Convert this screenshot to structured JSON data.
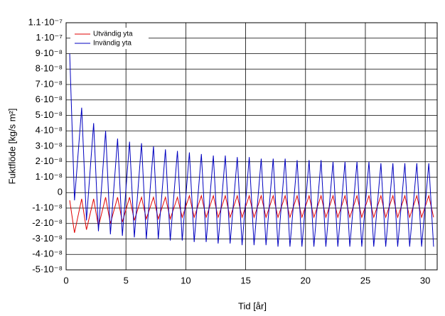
{
  "chart_data": {
    "type": "line",
    "xlabel": "Tid [år]",
    "ylabel": "Fuktflöde [kg/s m²]",
    "x": [
      0.3,
      0.7,
      1.3,
      1.7,
      2.3,
      2.7,
      3.3,
      3.7,
      4.3,
      4.7,
      5.3,
      5.7,
      6.3,
      6.7,
      7.3,
      7.7,
      8.3,
      8.7,
      9.3,
      9.7,
      10.3,
      10.7,
      11.3,
      11.7,
      12.3,
      12.7,
      13.3,
      13.7,
      14.3,
      14.7,
      15.3,
      15.7,
      16.3,
      16.7,
      17.3,
      17.7,
      18.3,
      18.7,
      19.3,
      19.7,
      20.3,
      20.7,
      21.3,
      21.7,
      22.3,
      22.7,
      23.3,
      23.7,
      24.3,
      24.7,
      25.3,
      25.7,
      26.3,
      26.7,
      27.3,
      27.7,
      28.3,
      28.7,
      29.3,
      29.7,
      30.3,
      30.7
    ],
    "series": [
      {
        "name": "Utvändig yta",
        "color": "#e00000",
        "values": [
          -5e-09,
          -2.6e-08,
          -4e-09,
          -2.4e-08,
          -4e-09,
          -2.2e-08,
          -3e-09,
          -2e-08,
          -3e-09,
          -1.9e-08,
          -3e-09,
          -1.8e-08,
          -3e-09,
          -1.7e-08,
          -3e-09,
          -1.7e-08,
          -3e-09,
          -1.7e-08,
          -3e-09,
          -1.6e-08,
          -2e-09,
          -1.6e-08,
          -2e-09,
          -1.6e-08,
          -2e-09,
          -1.6e-08,
          -2e-09,
          -1.6e-08,
          -2e-09,
          -1.6e-08,
          -2e-09,
          -1.6e-08,
          -2e-09,
          -1.6e-08,
          -2e-09,
          -1.6e-08,
          -2e-09,
          -1.6e-08,
          -2e-09,
          -1.6e-08,
          -2e-09,
          -1.6e-08,
          -2e-09,
          -1.6e-08,
          -2e-09,
          -1.6e-08,
          -2e-09,
          -1.6e-08,
          -2e-09,
          -1.6e-08,
          -2e-09,
          -1.6e-08,
          -2e-09,
          -1.6e-08,
          -2e-09,
          -1.6e-08,
          -2e-09,
          -1.6e-08,
          -2e-09,
          -1.6e-08,
          -2e-09,
          -1.6e-08
        ]
      },
      {
        "name": "Invändig yta",
        "color": "#0000c0",
        "values": [
          9e-08,
          -5e-09,
          5.5e-08,
          -1.8e-08,
          4.5e-08,
          -2.5e-08,
          4e-08,
          -2.7e-08,
          3.5e-08,
          -2.8e-08,
          3.3e-08,
          -2.9e-08,
          3.2e-08,
          -3e-08,
          3e-08,
          -3e-08,
          2.8e-08,
          -3.1e-08,
          2.7e-08,
          -3.1e-08,
          2.6e-08,
          -3.2e-08,
          2.5e-08,
          -3.2e-08,
          2.4e-08,
          -3.3e-08,
          2.4e-08,
          -3.3e-08,
          2.3e-08,
          -3.4e-08,
          2.3e-08,
          -3.4e-08,
          2.2e-08,
          -3.4e-08,
          2.2e-08,
          -3.5e-08,
          2.2e-08,
          -3.5e-08,
          2.1e-08,
          -3.5e-08,
          2.1e-08,
          -3.5e-08,
          2.1e-08,
          -3.5e-08,
          2e-08,
          -3.5e-08,
          2e-08,
          -3.5e-08,
          2e-08,
          -3.5e-08,
          2e-08,
          -3.5e-08,
          1.9e-08,
          -3.5e-08,
          1.9e-08,
          -3.5e-08,
          1.9e-08,
          -3.5e-08,
          1.9e-08,
          -3.5e-08,
          1.9e-08,
          -3.5e-08
        ]
      }
    ],
    "xlim": [
      0,
      31
    ],
    "xticks": [
      0,
      5,
      10,
      15,
      20,
      25,
      30
    ],
    "ylim": [
      -5e-08,
      1.1e-07
    ],
    "yticks": [
      {
        "value": -5e-08,
        "label": "-5·10⁻⁸"
      },
      {
        "value": -4e-08,
        "label": "-4·10⁻⁸"
      },
      {
        "value": -3e-08,
        "label": "-3·10⁻⁸"
      },
      {
        "value": -2e-08,
        "label": "-2·10⁻⁸"
      },
      {
        "value": -1e-08,
        "label": "-1·10⁻⁸"
      },
      0,
      {
        "value": 1e-08,
        "label": "1·10⁻⁸"
      },
      {
        "value": 2e-08,
        "label": "2·10⁻⁸"
      },
      {
        "value": 3e-08,
        "label": "3·10⁻⁸"
      },
      {
        "value": 4e-08,
        "label": "4·10⁻⁸"
      },
      {
        "value": 5e-08,
        "label": "5·10⁻⁸"
      },
      {
        "value": 6e-08,
        "label": "6·10⁻⁸"
      },
      {
        "value": 7e-08,
        "label": "7·10⁻⁸"
      },
      {
        "value": 8e-08,
        "label": "8·10⁻⁸"
      },
      {
        "value": 9e-08,
        "label": "9·10⁻⁸"
      },
      {
        "value": 1e-07,
        "label": "1·10⁻⁷"
      },
      {
        "value": 1.1e-07,
        "label": "1.1·10⁻⁷"
      }
    ],
    "grid": true,
    "legend": "upper left"
  }
}
